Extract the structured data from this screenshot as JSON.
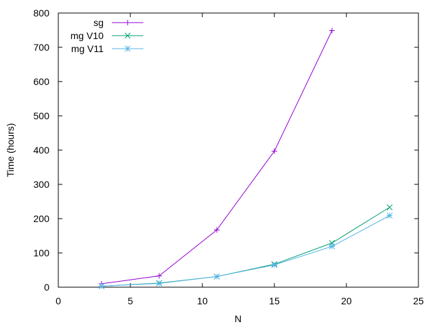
{
  "chart_data": {
    "type": "line",
    "xlabel": "N",
    "ylabel": "Time (hours)",
    "xlim": [
      0,
      25
    ],
    "ylim": [
      0,
      800
    ],
    "xticks": [
      0,
      5,
      10,
      15,
      20,
      25
    ],
    "yticks": [
      0,
      100,
      200,
      300,
      400,
      500,
      600,
      700,
      800
    ],
    "grid": false,
    "legend_position": "top-left",
    "series": [
      {
        "name": "sg",
        "color": "#9400d3",
        "marker": "plus",
        "x": [
          3,
          7,
          11,
          15,
          19
        ],
        "y": [
          10,
          33,
          167,
          397,
          749
        ]
      },
      {
        "name": "mg V10",
        "color": "#009e73",
        "marker": "cross",
        "x": [
          3,
          7,
          11,
          15,
          19,
          23
        ],
        "y": [
          3,
          12,
          31,
          67,
          129,
          233
        ]
      },
      {
        "name": "mg V11",
        "color": "#56b4e9",
        "marker": "star",
        "x": [
          3,
          7,
          11,
          15,
          19,
          23
        ],
        "y": [
          3,
          11,
          31,
          65,
          119,
          209
        ]
      }
    ]
  }
}
